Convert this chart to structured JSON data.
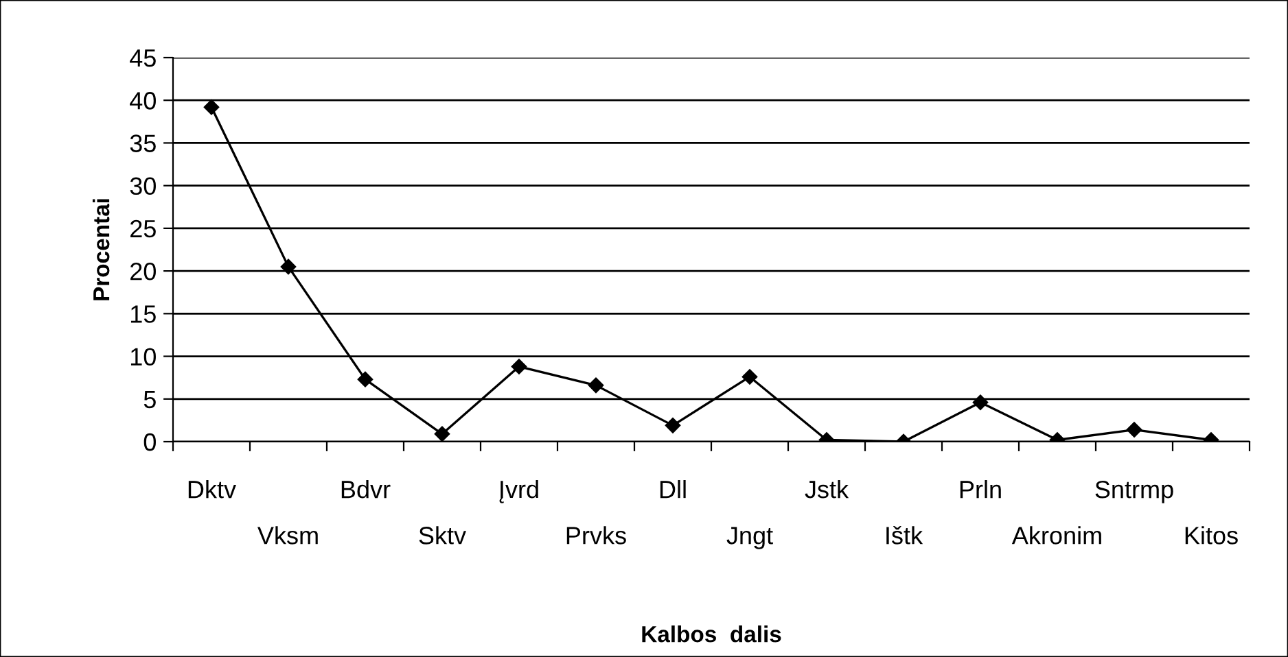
{
  "chart_data": {
    "type": "line",
    "xlabel": "Kalbos  dalis",
    "ylabel": "Procentai",
    "categories": [
      "Dktv",
      "Vksm",
      "Bdvr",
      "Sktv",
      "Įvrd",
      "Prvks",
      "Dll",
      "Jngt",
      "Jstk",
      "Ištk",
      "Prln",
      "Akronim",
      "Sntrmp",
      "Kitos"
    ],
    "series": [
      {
        "color": "#000000",
        "values": [
          39.2,
          20.5,
          7.3,
          0.9,
          8.8,
          6.6,
          1.9,
          7.6,
          0.2,
          0.0,
          4.6,
          0.2,
          1.4,
          0.2
        ]
      }
    ],
    "ylim": [
      0,
      45
    ],
    "yticks": [
      0,
      5,
      10,
      15,
      20,
      25,
      30,
      35,
      40,
      45
    ],
    "grid": "y",
    "marker": "diamond",
    "line_style": "solid",
    "legend": false
  }
}
